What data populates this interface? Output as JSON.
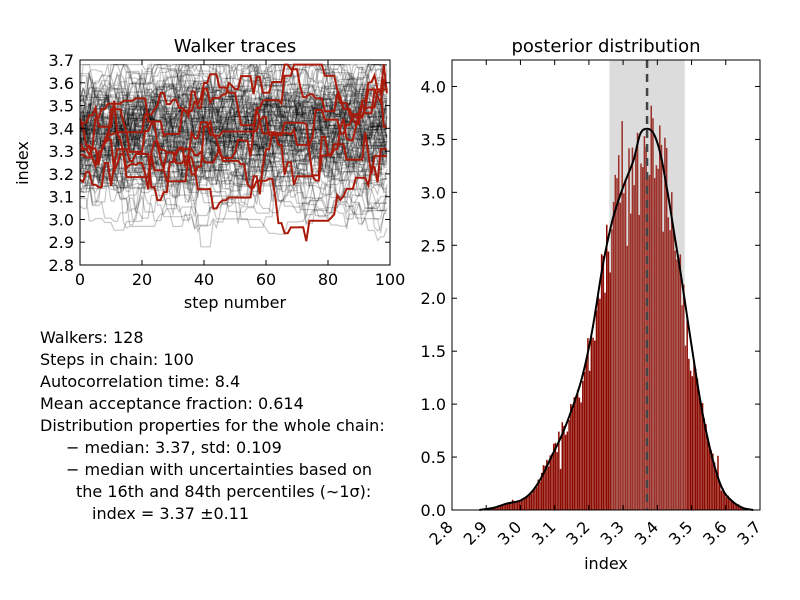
{
  "chart_data": [
    {
      "type": "line",
      "title": "Walker traces",
      "xlabel": "step number",
      "ylabel": "index",
      "xlim": [
        0,
        100
      ],
      "ylim": [
        2.8,
        3.7
      ],
      "xticks": [
        "0",
        "20",
        "40",
        "60",
        "80",
        "100"
      ],
      "yticks": [
        "2.8",
        "2.9",
        "3.0",
        "3.1",
        "3.2",
        "3.3",
        "3.4",
        "3.5",
        "3.6",
        "3.7"
      ],
      "walkers": 128,
      "steps": 100,
      "highlighted_walkers": 6,
      "trace_colors": {
        "background": "#000000",
        "highlight": "#aa1a0a"
      },
      "grid": false
    },
    {
      "type": "bar",
      "title": "posterior distribution",
      "xlabel": "index",
      "ylabel": "",
      "xlim": [
        2.8,
        3.7
      ],
      "ylim": [
        0.0,
        4.25
      ],
      "xticks": [
        "2.8",
        "2.9",
        "3.0",
        "3.1",
        "3.2",
        "3.3",
        "3.4",
        "3.5",
        "3.6",
        "3.7"
      ],
      "yticks": [
        "0.0",
        "0.5",
        "1.0",
        "1.5",
        "2.0",
        "2.5",
        "3.0",
        "3.5",
        "4.0"
      ],
      "bin_width": 0.005,
      "median": 3.37,
      "interval": [
        3.26,
        3.48
      ],
      "density_curve": {
        "x": [
          2.88,
          2.92,
          2.96,
          3.0,
          3.03,
          3.06,
          3.09,
          3.12,
          3.15,
          3.18,
          3.21,
          3.24,
          3.27,
          3.3,
          3.33,
          3.35,
          3.37,
          3.39,
          3.41,
          3.43,
          3.45,
          3.47,
          3.5,
          3.53,
          3.56,
          3.59,
          3.62,
          3.65,
          3.68
        ],
        "y": [
          0.0,
          0.02,
          0.06,
          0.09,
          0.16,
          0.3,
          0.5,
          0.7,
          0.95,
          1.25,
          1.7,
          2.3,
          2.75,
          3.05,
          3.3,
          3.55,
          3.6,
          3.55,
          3.35,
          3.0,
          2.6,
          2.2,
          1.55,
          0.95,
          0.5,
          0.2,
          0.08,
          0.02,
          0.0
        ]
      },
      "colors": {
        "bars": "#8b0a00",
        "interval_shade": "#dcdcdc",
        "curve": "#000000",
        "median_line": "#444444"
      },
      "grid": false
    }
  ],
  "info": {
    "walkers": "Walkers: 128",
    "steps": "Steps in chain: 100",
    "autocorr": "Autocorrelation time: 8.4",
    "acceptance": "Mean acceptance fraction: 0.614",
    "dist_header": "Distribution properties for the whole chain:",
    "median_std": "− median: 3.37, std: 0.109",
    "uncert_line1": "− median with uncertainties based on",
    "uncert_line2": "the 16th and 84th percentiles (∼1σ):",
    "result": "index = 3.37 ±0.11"
  }
}
